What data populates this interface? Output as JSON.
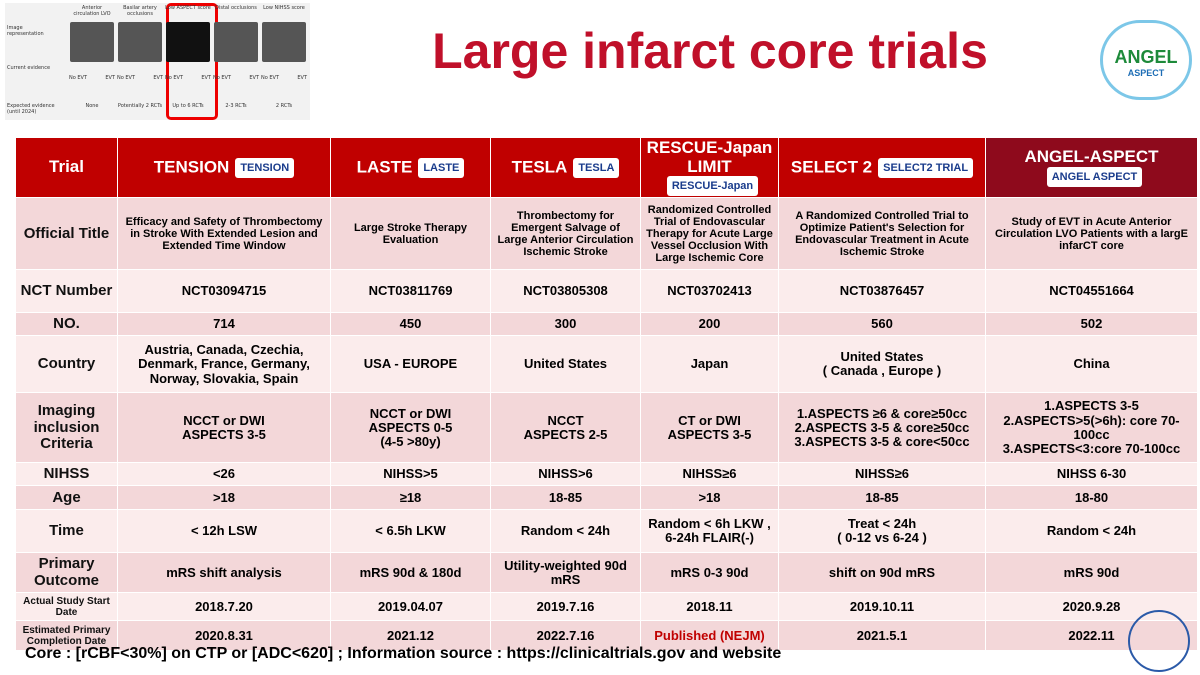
{
  "header": {
    "title": "Large infarct core trials",
    "logo": {
      "main": "ANGEL",
      "sub": "ASPECT"
    }
  },
  "thumbnail": {
    "columns": [
      "Anterior circulation LVO",
      "Basilar artery occlusions",
      "Low ASPECT score",
      "Distal occlusions",
      "Low NIHSS score"
    ],
    "row_labels": [
      "Image representation",
      "Current evidence",
      "Expected evidence (until 2024)"
    ],
    "evidence_labels": [
      "No EVT",
      "EVT"
    ],
    "expected": [
      "None",
      "Potentially 2 RCTs",
      "Up to 6 RCTs",
      "2-3 RCTs",
      "2 RCTs"
    ]
  },
  "table": {
    "header_label": "Trial",
    "columns": [
      {
        "name": "TENSION",
        "logo": "TENSION"
      },
      {
        "name": "LASTE",
        "logo": "LASTE"
      },
      {
        "name": "TESLA",
        "logo": "TESLA"
      },
      {
        "name": "RESCUE-Japan LIMIT",
        "logo": "RESCUE-Japan"
      },
      {
        "name": "SELECT 2",
        "logo": "SELECT2 TRIAL"
      },
      {
        "name": "ANGEL-ASPECT",
        "logo": "ANGEL ASPECT"
      }
    ],
    "rows": [
      {
        "label": "Official Title",
        "cells": [
          "Efficacy and Safety of Thrombectomy in Stroke With Extended Lesion and Extended Time Window",
          "Large Stroke Therapy Evaluation",
          "Thrombectomy for Emergent Salvage of Large Anterior Circulation Ischemic Stroke",
          "Randomized Controlled Trial of Endovascular Therapy for Acute Large Vessel Occlusion With Large Ischemic Core",
          "A Randomized Controlled Trial to Optimize Patient's Selection for Endovascular Treatment in Acute Ischemic Stroke",
          "Study of EVT in Acute Anterior Circulation LVO Patients with a largE infarCT core"
        ]
      },
      {
        "label": "NCT Number",
        "cells": [
          "NCT03094715",
          "NCT03811769",
          "NCT03805308",
          "NCT03702413",
          "NCT03876457",
          "NCT04551664"
        ]
      },
      {
        "label": "NO.",
        "cells": [
          "714",
          "450",
          "300",
          "200",
          "560",
          "502"
        ]
      },
      {
        "label": "Country",
        "cells": [
          "Austria, Canada, Czechia, Denmark, France, Germany, Norway, Slovakia, Spain",
          "USA - EUROPE",
          "United States",
          "Japan",
          "United States\n( Canada , Europe )",
          "China"
        ]
      },
      {
        "label": "Imaging inclusion Criteria",
        "cells": [
          "NCCT or DWI\nASPECTS 3-5",
          "NCCT or DWI\nASPECTS 0-5\n(4-5 >80y)",
          "NCCT\nASPECTS 2-5",
          "CT or DWI\nASPECTS 3-5",
          "1.ASPECTS ≥6 & core≥50cc\n2.ASPECTS 3-5 & core≥50cc\n3.ASPECTS 3-5 & core<50cc",
          "1.ASPECTS 3-5\n2.ASPECTS>5(>6h): core 70-100cc\n3.ASPECTS<3:core 70-100cc"
        ]
      },
      {
        "label": "NIHSS",
        "cells": [
          "<26",
          "NIHSS>5",
          "NIHSS>6",
          "NIHSS≥6",
          "NIHSS≥6",
          "NIHSS 6-30"
        ]
      },
      {
        "label": "Age",
        "cells": [
          ">18",
          "≥18",
          "18-85",
          ">18",
          "18-85",
          "18-80"
        ]
      },
      {
        "label": "Time",
        "cells": [
          "< 12h LSW",
          "< 6.5h LKW",
          "Random < 24h",
          "Random < 6h LKW ,\n6-24h FLAIR(-)",
          "Treat < 24h\n( 0-12 vs 6-24 )",
          "Random < 24h"
        ]
      },
      {
        "label": "Primary Outcome",
        "cells": [
          "mRS shift analysis",
          "mRS 90d & 180d",
          "Utility-weighted 90d mRS",
          "mRS 0-3 90d",
          "shift on 90d mRS",
          "mRS 90d"
        ]
      },
      {
        "label": "Actual Study Start Date",
        "cells": [
          "2018.7.20",
          "2019.04.07",
          "2019.7.16",
          "2018.11",
          "2019.10.11",
          "2020.9.28"
        ]
      },
      {
        "label": "Estimated Primary Completion Date",
        "cells": [
          "2020.8.31",
          "2021.12",
          "2022.7.16",
          "Published (NEJM)",
          "2021.5.1",
          "2022.11"
        ]
      }
    ]
  },
  "footer": "Core : [rCBF<30%] on CTP or [ADC<620] ; Information source : https://clinicaltrials.gov and website"
}
